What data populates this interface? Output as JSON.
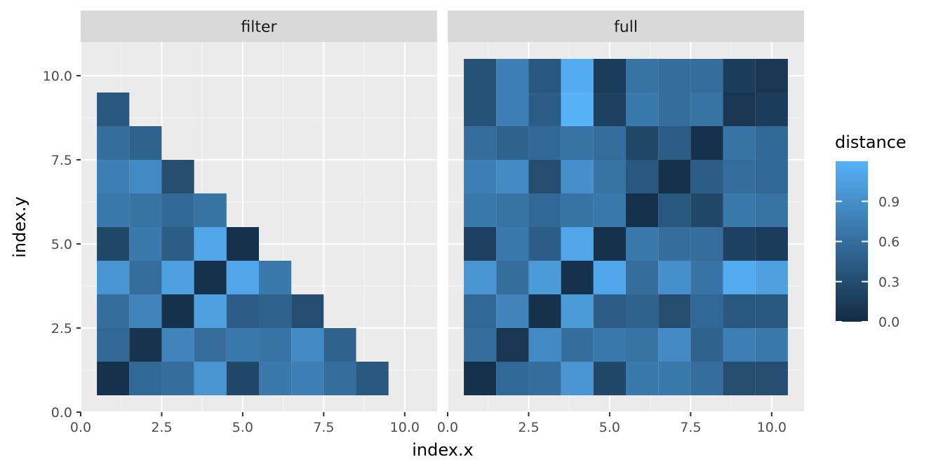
{
  "chart_data": {
    "type": "heatmap",
    "xlabel": "index.x",
    "ylabel": "index.y",
    "xlim": [
      0,
      11
    ],
    "ylim": [
      0,
      11
    ],
    "x_ticks": [
      "0.0",
      "2.5",
      "5.0",
      "7.5",
      "10.0"
    ],
    "y_ticks": [
      "0.0",
      "2.5",
      "5.0",
      "7.5",
      "10.0"
    ],
    "grid": true,
    "legend": {
      "title": "distance",
      "position": "right",
      "range": [
        0,
        1.2
      ],
      "ticks": [
        "0.0",
        "0.3",
        "0.6",
        "0.9"
      ],
      "low_color": "#132B43",
      "high_color": "#56B1F7"
    },
    "panels": [
      {
        "name": "filter",
        "cells": [
          [
            0.05,
            0.55,
            0.6,
            0.95,
            0.25,
            0.7,
            0.75,
            0.6,
            0.4
          ],
          [
            0.55,
            0.08,
            0.8,
            0.6,
            0.7,
            0.65,
            0.85,
            0.5
          ],
          [
            0.6,
            0.8,
            0.05,
            1.05,
            0.45,
            0.55,
            0.3
          ],
          [
            0.95,
            0.6,
            1.05,
            0.05,
            1.1,
            0.65
          ],
          [
            0.25,
            0.7,
            0.45,
            1.1,
            0.05
          ],
          [
            0.7,
            0.65,
            0.5,
            0.7
          ],
          [
            0.75,
            0.85,
            0.3
          ],
          [
            0.6,
            0.5
          ],
          [
            0.4
          ]
        ]
      },
      {
        "name": "full",
        "cells": [
          [
            0.05,
            0.6,
            0.55,
            0.95,
            0.2,
            0.7,
            0.75,
            0.6,
            0.35,
            0.35
          ],
          [
            0.55,
            0.1,
            0.8,
            0.6,
            0.7,
            0.65,
            0.85,
            0.5,
            0.75,
            0.75
          ],
          [
            0.6,
            0.85,
            0.05,
            1.0,
            0.45,
            0.55,
            0.3,
            0.55,
            0.45,
            0.4
          ],
          [
            0.95,
            0.6,
            1.0,
            0.05,
            1.1,
            0.65,
            0.9,
            0.65,
            1.2,
            1.15
          ],
          [
            0.25,
            0.7,
            0.45,
            1.1,
            0.05,
            0.7,
            0.65,
            0.6,
            0.2,
            0.15
          ],
          [
            0.7,
            0.65,
            0.5,
            0.6,
            0.7,
            0.05,
            0.4,
            0.25,
            0.7,
            0.65
          ],
          [
            0.7,
            0.85,
            0.3,
            0.9,
            0.6,
            0.4,
            0.05,
            0.45,
            0.6,
            0.6
          ],
          [
            0.6,
            0.5,
            0.55,
            0.65,
            0.6,
            0.25,
            0.45,
            0.05,
            0.65,
            0.6
          ],
          [
            0.3,
            0.75,
            0.4,
            1.15,
            0.2,
            0.7,
            0.6,
            0.65,
            0.1,
            0.15
          ],
          [
            0.3,
            0.7,
            0.4,
            1.05,
            0.15,
            0.65,
            0.55,
            0.55,
            0.15,
            0.1
          ]
        ]
      }
    ]
  }
}
